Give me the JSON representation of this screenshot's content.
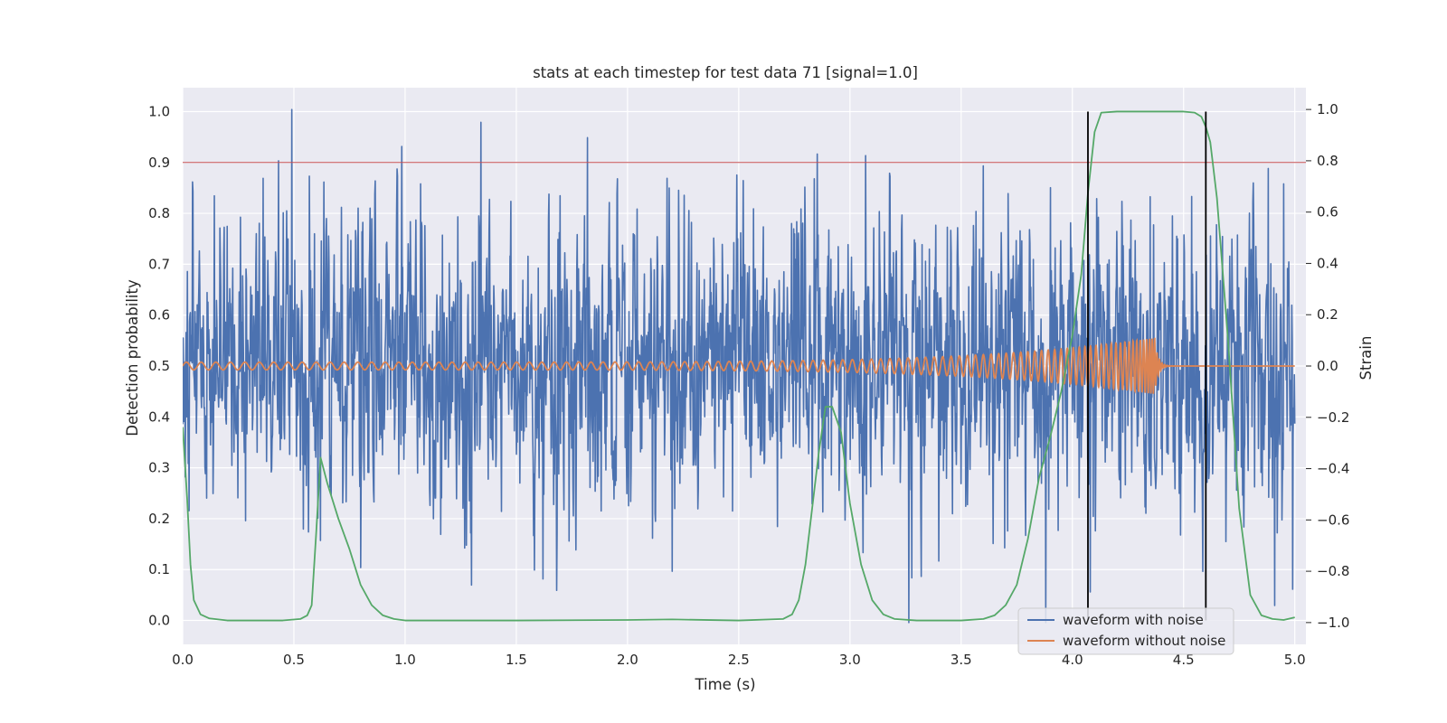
{
  "chart_data": {
    "type": "line",
    "title": "stats at each timestep for test data 71 [signal=1.0]",
    "xlabel": "Time (s)",
    "ylabel": "Detection probability",
    "ylabel_right": "Strain",
    "xlim": [
      0.0,
      5.05
    ],
    "ylim": [
      -0.047,
      1.047
    ],
    "ylim_right": [
      -1.085,
      1.085
    ],
    "xticks": [
      "0.0",
      "0.5",
      "1.0",
      "1.5",
      "2.0",
      "2.5",
      "3.0",
      "3.5",
      "4.0",
      "4.5",
      "5.0"
    ],
    "yticks": [
      "0.0",
      "0.1",
      "0.2",
      "0.3",
      "0.4",
      "0.5",
      "0.6",
      "0.7",
      "0.8",
      "0.9",
      "1.0"
    ],
    "yticks_right": [
      "−1.0",
      "−0.8",
      "−0.6",
      "−0.4",
      "−0.2",
      "0.0",
      "0.2",
      "0.4",
      "0.6",
      "0.8",
      "1.0"
    ],
    "grid": true,
    "legend_position": "lower-right",
    "threshold": 0.9,
    "vertical_markers": [
      4.07,
      4.6
    ],
    "colors": {
      "noise": "#4c72b0",
      "clean": "#dd8452",
      "probability": "#55a868",
      "threshold": "#c44e52",
      "markers": "#000000",
      "background": "#eaeaf2",
      "grid": "#ffffff"
    },
    "series": [
      {
        "name": "waveform with noise",
        "axis": "right",
        "note_stats": {
          "mean": 0.0,
          "approx_std": 0.27,
          "peak": 1.0
        },
        "peaks": [
          [
            0.49,
            1.0
          ],
          [
            0.43,
            0.8
          ],
          [
            0.57,
            0.74
          ],
          [
            1.34,
            0.95
          ],
          [
            1.82,
            0.89
          ],
          [
            1.07,
            0.71
          ],
          [
            3.07,
            0.82
          ],
          [
            3.6,
            0.78
          ],
          [
            4.88,
            0.77
          ],
          [
            4.95,
            0.71
          ],
          [
            4.35,
            0.66
          ],
          [
            0.81,
            0.56
          ],
          [
            0.26,
            0.58
          ],
          [
            2.84,
            0.73
          ],
          [
            3.88,
            -1.0
          ],
          [
            1.62,
            -0.83
          ],
          [
            3.32,
            -0.82
          ],
          [
            0.62,
            -0.68
          ],
          [
            4.99,
            -0.87
          ],
          [
            2.2,
            -0.8
          ]
        ]
      },
      {
        "name": "waveform without noise",
        "axis": "right",
        "chirp": {
          "f_start": 15,
          "f_end": 90,
          "amp_start": 0.015,
          "amp_peak": 0.11,
          "merger_time": 4.37,
          "ringdown_tau": 0.015,
          "duration": 4.37
        }
      },
      {
        "name": "",
        "axis": "left",
        "x": [
          0.0,
          0.02,
          0.035,
          0.05,
          0.08,
          0.12,
          0.2,
          0.3,
          0.45,
          0.53,
          0.56,
          0.58,
          0.6,
          0.62,
          0.65,
          0.7,
          0.75,
          0.8,
          0.85,
          0.9,
          0.95,
          1.0,
          1.5,
          2.0,
          2.2,
          2.5,
          2.7,
          2.74,
          2.77,
          2.8,
          2.83,
          2.86,
          2.89,
          2.92,
          2.96,
          3.0,
          3.05,
          3.1,
          3.15,
          3.2,
          3.3,
          3.5,
          3.6,
          3.65,
          3.7,
          3.75,
          3.8,
          3.85,
          3.9,
          3.95,
          4.0,
          4.04,
          4.07,
          4.1,
          4.13,
          4.2,
          4.5,
          4.55,
          4.58,
          4.6,
          4.62,
          4.65,
          4.7,
          4.75,
          4.8,
          4.85,
          4.9,
          4.95,
          5.0
        ],
        "y": [
          0.38,
          0.24,
          0.11,
          0.04,
          0.012,
          0.004,
          0.0,
          0.0,
          0.0,
          0.003,
          0.01,
          0.03,
          0.17,
          0.32,
          0.27,
          0.2,
          0.14,
          0.07,
          0.03,
          0.01,
          0.003,
          0.0,
          0.0,
          0.001,
          0.002,
          0.0,
          0.003,
          0.012,
          0.04,
          0.11,
          0.22,
          0.33,
          0.42,
          0.42,
          0.37,
          0.23,
          0.11,
          0.04,
          0.012,
          0.003,
          0.0,
          0.0,
          0.003,
          0.01,
          0.03,
          0.07,
          0.16,
          0.28,
          0.36,
          0.45,
          0.56,
          0.68,
          0.84,
          0.96,
          0.998,
          1.0,
          1.0,
          0.998,
          0.99,
          0.97,
          0.94,
          0.83,
          0.55,
          0.22,
          0.05,
          0.01,
          0.003,
          0.001,
          0.006
        ]
      }
    ]
  }
}
